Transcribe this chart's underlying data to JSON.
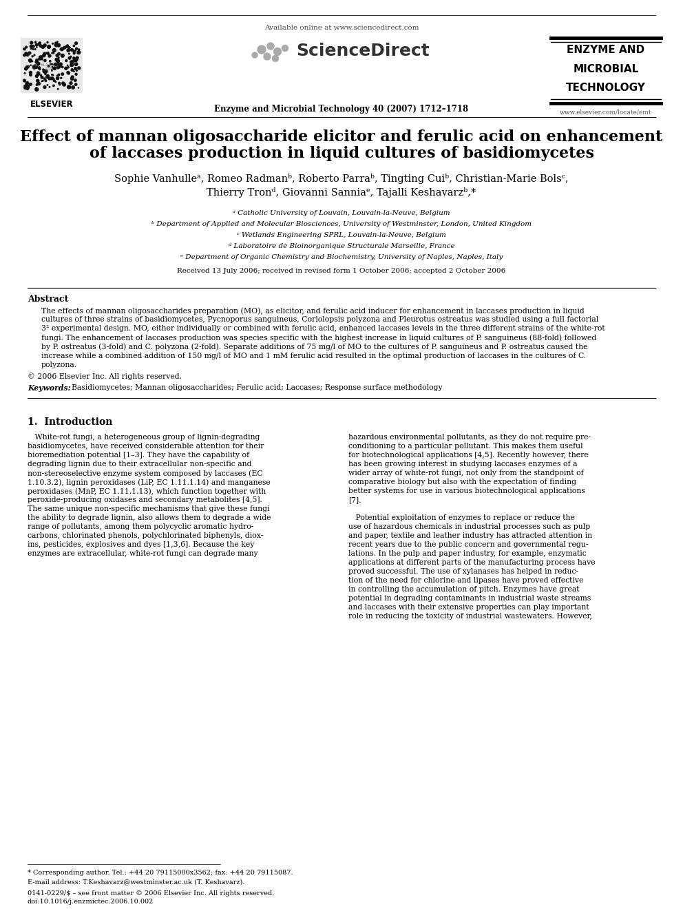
{
  "title_line1": "Effect of mannan oligosaccharide elicitor and ferulic acid on enhancement",
  "title_line2": "of laccases production in liquid cultures of basidiomycetes",
  "authors_line1": "Sophie Vanhulleᵃ, Romeo Radmanᵇ, Roberto Parraᵇ, Tingting Cuiᵇ, Christian-Marie Bolsᶜ,",
  "authors_line2": "Thierry Tronᵈ, Giovanni Sanniaᵉ, Tajalli Keshavarzᵇ,*",
  "affil_a": "ᵃ Catholic University of Louvain, Louvain-la-Neuve, Belgium",
  "affil_b": "ᵇ Department of Applied and Molecular Biosciences, University of Westminster, London, United Kingdom",
  "affil_c": "ᶜ Wetlands Engineering SPRL, Louvain-la-Neuve, Belgium",
  "affil_d": "ᵈ Laboratoire de Bioinorganique Structurale Marseille, France",
  "affil_e": "ᵉ Department of Organic Chemistry and Biochemistry, University of Naples, Naples, Italy",
  "received": "Received 13 July 2006; received in revised form 1 October 2006; accepted 2 October 2006",
  "abstract_title": "Abstract",
  "copyright": "© 2006 Elsevier Inc. All rights reserved.",
  "keywords_label": "Keywords:",
  "keywords_text": "  Basidiomycetes; Mannan oligosaccharides; Ferulic acid; Laccases; Response surface methodology",
  "section1_title": "1.  Introduction",
  "footer_note": "* Corresponding author. Tel.: +44 20 79115000x3562; fax: +44 20 79115087.",
  "footer_email": "E-mail address: T.Keshavarz@westminster.ac.uk (T. Keshavarz).",
  "footer_issn": "0141-0229/$ – see front matter © 2006 Elsevier Inc. All rights reserved.",
  "footer_doi": "doi:10.1016/j.enzmictec.2006.10.002",
  "journal_header": "Enzyme and Microbial Technology 40 (2007) 1712–1718",
  "available_online": "Available online at www.sciencedirect.com",
  "journal_website": "www.elsevier.com/locate/emt",
  "background_color": "#ffffff",
  "abstract_lines": [
    "The effects of mannan oligosaccharides preparation (MO), as elicitor, and ferulic acid inducer for enhancement in laccases production in liquid",
    "cultures of three strains of basidiomycetes, Pycnoporus sanguineus, Coriolopsis polyzona and Pleurotus ostreatus was studied using a full factorial",
    "3² experimental design. MO, either individually or combined with ferulic acid, enhanced laccases levels in the three different strains of the white-rot",
    "fungi. The enhancement of laccases production was species specific with the highest increase in liquid cultures of P. sanguineus (88-fold) followed",
    "by P. ostreatus (3-fold) and C. polyzona (2-fold). Separate additions of 75 mg/l of MO to the cultures of P. sanguineus and P. ostreatus caused the",
    "increase while a combined addition of 150 mg/l of MO and 1 mM ferulic acid resulted in the optimal production of laccases in the cultures of C.",
    "polyzona."
  ],
  "col1_lines": [
    "   White-rot fungi, a heterogeneous group of lignin-degrading",
    "basidiomycetes, have received considerable attention for their",
    "bioremediation potential [1–3]. They have the capability of",
    "degrading lignin due to their extracellular non-specific and",
    "non-stereoselective enzyme system composed by laccases (EC",
    "1.10.3.2), lignin peroxidases (LiP, EC 1.11.1.14) and manganese",
    "peroxidases (MnP, EC 1.11.1.13), which function together with",
    "peroxide-producing oxidases and secondary metabolites [4,5].",
    "The same unique non-specific mechanisms that give these fungi",
    "the ability to degrade lignin, also allows them to degrade a wide",
    "range of pollutants, among them polycyclic aromatic hydro-",
    "carbons, chlorinated phenols, polychlorinated biphenyls, diox-",
    "ins, pesticides, explosives and dyes [1,3,6]. Because the key",
    "enzymes are extracellular, white-rot fungi can degrade many"
  ],
  "col2_lines_p1": [
    "hazardous environmental pollutants, as they do not require pre-",
    "conditioning to a particular pollutant. This makes them useful",
    "for biotechnological applications [4,5]. Recently however, there",
    "has been growing interest in studying laccases enzymes of a",
    "wider array of white-rot fungi, not only from the standpoint of",
    "comparative biology but also with the expectation of finding",
    "better systems for use in various biotechnological applications",
    "[7]."
  ],
  "col2_lines_p2": [
    "   Potential exploitation of enzymes to replace or reduce the",
    "use of hazardous chemicals in industrial processes such as pulp",
    "and paper, textile and leather industry has attracted attention in",
    "recent years due to the public concern and governmental regu-",
    "lations. In the pulp and paper industry, for example, enzymatic",
    "applications at different parts of the manufacturing process have",
    "proved successful. The use of xylanases has helped in reduc-",
    "tion of the need for chlorine and lipases have proved effective",
    "in controlling the accumulation of pitch. Enzymes have great",
    "potential in degrading contaminants in industrial waste streams",
    "and laccases with their extensive properties can play important",
    "role in reducing the toxicity of industrial wastewaters. However,"
  ]
}
